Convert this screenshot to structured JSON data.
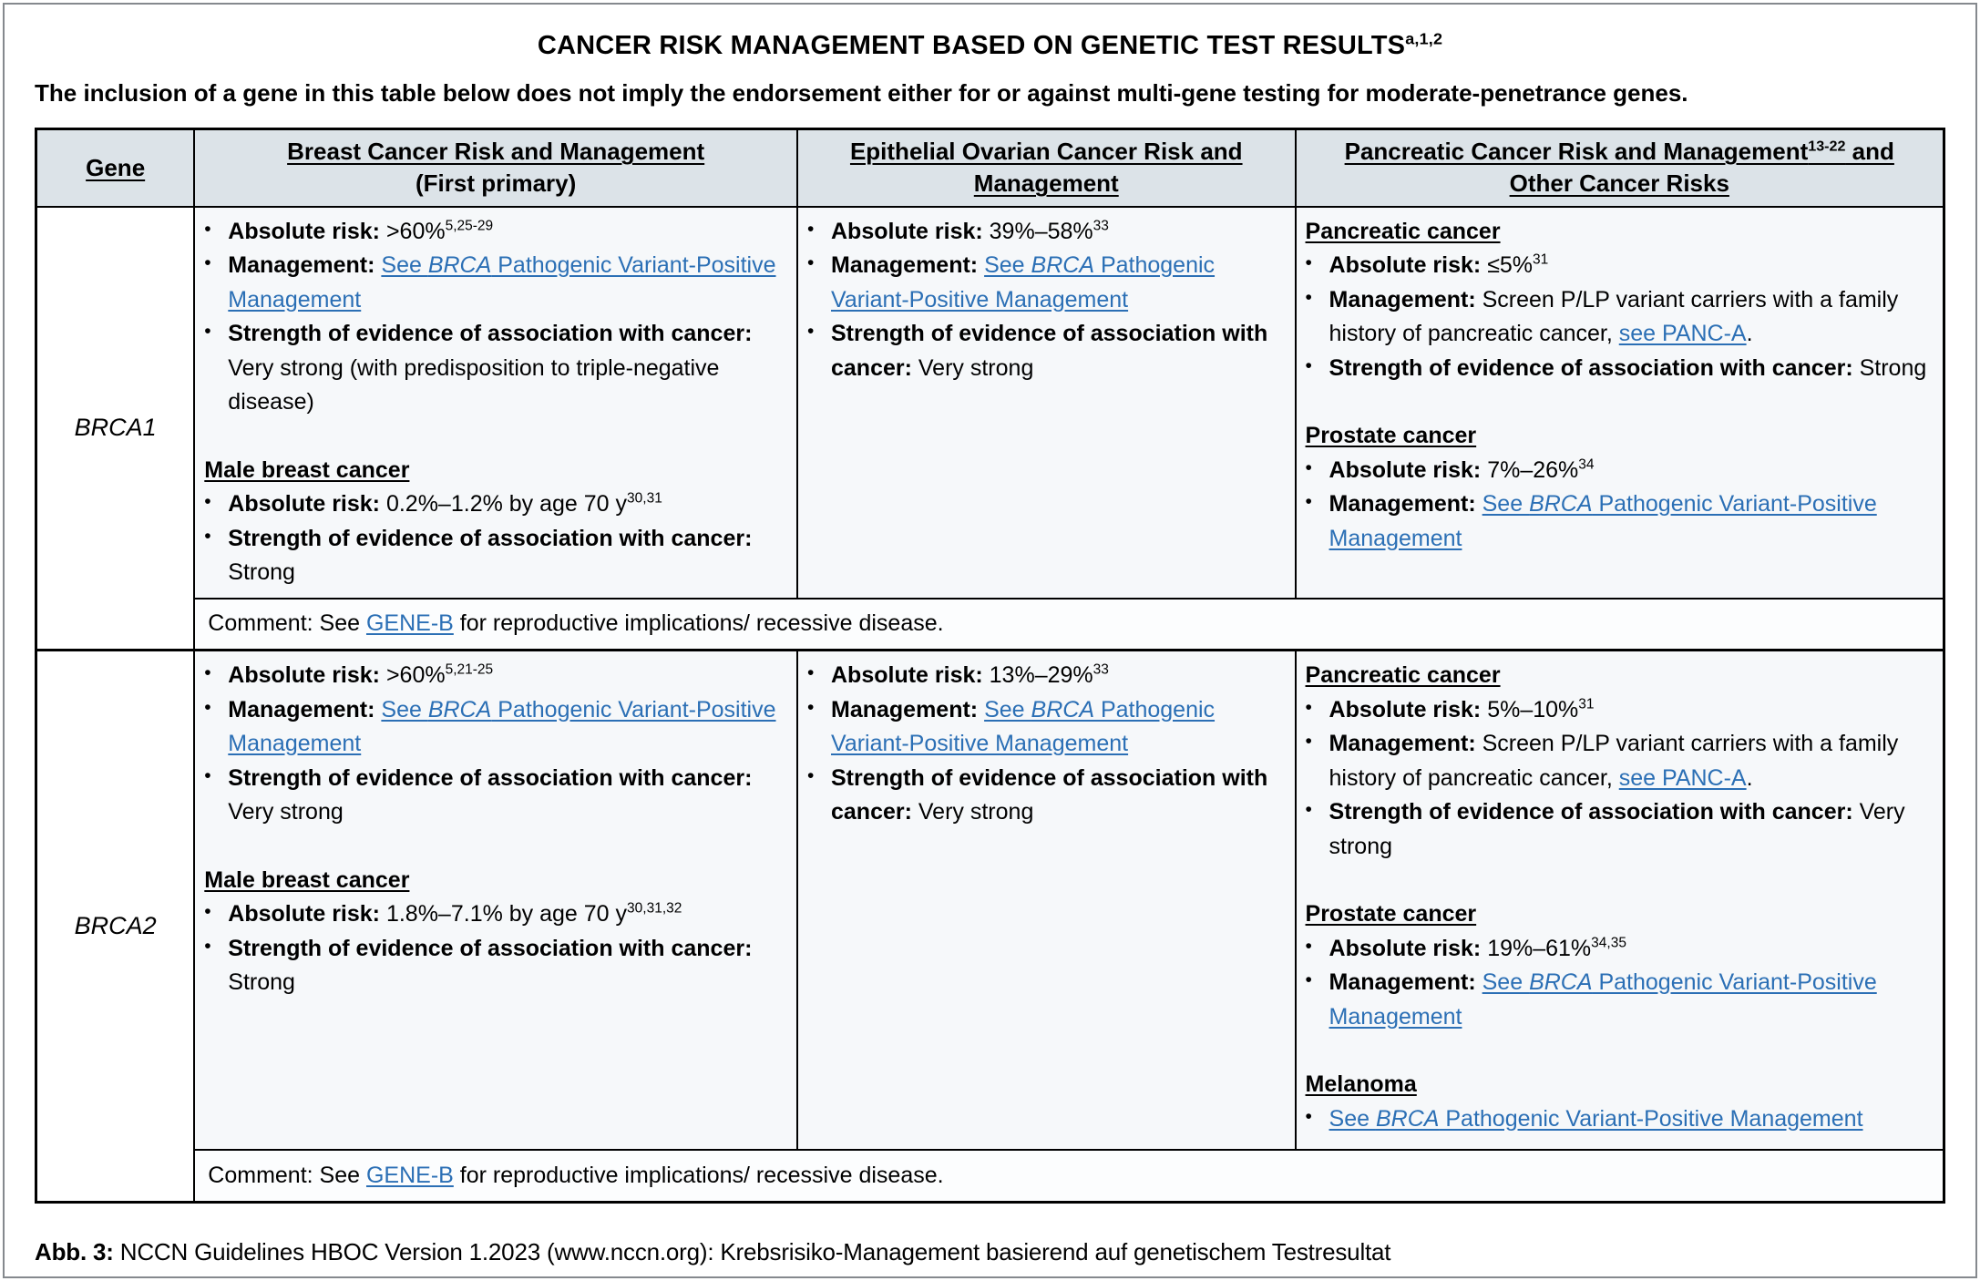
{
  "page": {
    "title": "CANCER RISK MANAGEMENT BASED ON GENETIC TEST RESULTS",
    "title_superscript": "a,1,2",
    "subtitle": "The inclusion of a gene in this table below does not imply the endorsement either for or against multi-gene testing for moderate-penetrance genes.",
    "caption_label": "Abb. 3:",
    "caption_text": "NCCN Guidelines HBOC Version 1.2023 (www.nccn.org): Krebsrisiko-Management basierend auf genetischem Testresultat"
  },
  "glyphs": {
    "bullet": "•"
  },
  "colors": {
    "link_blue": "#2b6fb5",
    "header_bg": "#dce3e8",
    "cell_bg": "#f6f8fa",
    "border": "#000000",
    "frame_gray": "#85898e"
  },
  "table": {
    "header": [
      {
        "id": "gene",
        "lines": [
          {
            "u": 1,
            "segments": [
              {
                "t": "Gene",
                "b": 1
              }
            ]
          }
        ]
      },
      {
        "id": "breast",
        "lines": [
          {
            "u": 1,
            "segments": [
              {
                "t": "Breast Cancer Risk and Management",
                "b": 1
              }
            ]
          },
          {
            "u": 0,
            "segments": [
              {
                "t": "(First primary)",
                "b": 1
              }
            ]
          }
        ]
      },
      {
        "id": "ovarian",
        "lines": [
          {
            "u": 1,
            "segments": [
              {
                "t": "Epithelial Ovarian Cancer Risk and",
                "b": 1
              }
            ]
          },
          {
            "u": 1,
            "segments": [
              {
                "t": "Management",
                "b": 1
              }
            ]
          }
        ]
      },
      {
        "id": "pancreatic",
        "lines": [
          {
            "u": 1,
            "segments": [
              {
                "t": "Pancreatic Cancer Risk and Management",
                "b": 1
              },
              {
                "t": "13-22",
                "b": 1,
                "sup": 1
              },
              {
                "t": " and",
                "b": 1
              }
            ]
          },
          {
            "u": 1,
            "segments": [
              {
                "t": "Other Cancer Risks",
                "b": 1
              }
            ]
          }
        ]
      }
    ],
    "rows": [
      {
        "gene": "BRCA1",
        "cells": {
          "breast": {
            "blocks": [
              {
                "type": "bullet",
                "segments": [
                  {
                    "t": "Absolute risk: ",
                    "b": 1
                  },
                  {
                    "t": ">60%"
                  },
                  {
                    "t": "5,25-29",
                    "sup": 1
                  }
                ]
              },
              {
                "type": "bullet",
                "segments": [
                  {
                    "t": "Management: ",
                    "b": 1
                  },
                  {
                    "t": "See ",
                    "link": 1
                  },
                  {
                    "t": "BRCA",
                    "link": 1,
                    "i": 1
                  },
                  {
                    "t": " Pathogenic Variant-Positive Management",
                    "link": 1
                  }
                ]
              },
              {
                "type": "bullet",
                "segments": [
                  {
                    "t": "Strength of evidence of association with cancer: ",
                    "b": 1
                  },
                  {
                    "t": "Very strong (with predisposition to triple-negative disease)"
                  }
                ]
              },
              {
                "type": "spacer"
              },
              {
                "type": "heading",
                "segments": [
                  {
                    "t": "Male breast cancer",
                    "b": 1
                  }
                ]
              },
              {
                "type": "bullet",
                "segments": [
                  {
                    "t": "Absolute risk: ",
                    "b": 1
                  },
                  {
                    "t": "0.2%–1.2% by age 70 y"
                  },
                  {
                    "t": "30,31",
                    "sup": 1
                  }
                ]
              },
              {
                "type": "bullet",
                "segments": [
                  {
                    "t": "Strength of evidence of association with cancer: ",
                    "b": 1
                  },
                  {
                    "t": "Strong"
                  }
                ]
              }
            ]
          },
          "ovarian": {
            "blocks": [
              {
                "type": "bullet",
                "segments": [
                  {
                    "t": "Absolute risk: ",
                    "b": 1
                  },
                  {
                    "t": "39%–58%"
                  },
                  {
                    "t": "33",
                    "sup": 1
                  }
                ]
              },
              {
                "type": "bullet",
                "segments": [
                  {
                    "t": "Management: ",
                    "b": 1
                  },
                  {
                    "t": "See ",
                    "link": 1
                  },
                  {
                    "t": "BRCA",
                    "link": 1,
                    "i": 1
                  },
                  {
                    "t": " Pathogenic Variant-Positive Management",
                    "link": 1
                  }
                ]
              },
              {
                "type": "bullet",
                "segments": [
                  {
                    "t": "Strength of evidence of association with cancer: ",
                    "b": 1
                  },
                  {
                    "t": "Very strong"
                  }
                ]
              }
            ]
          },
          "pancreatic": {
            "blocks": [
              {
                "type": "heading",
                "segments": [
                  {
                    "t": "Pancreatic cancer",
                    "b": 1
                  }
                ]
              },
              {
                "type": "bullet",
                "segments": [
                  {
                    "t": "Absolute risk: ",
                    "b": 1
                  },
                  {
                    "t": "≤5%"
                  },
                  {
                    "t": "31",
                    "sup": 1
                  }
                ]
              },
              {
                "type": "bullet",
                "segments": [
                  {
                    "t": "Management: ",
                    "b": 1
                  },
                  {
                    "t": "Screen P/LP variant carriers with a family history of pancreatic cancer, "
                  },
                  {
                    "t": "see PANC-A",
                    "link": 1
                  },
                  {
                    "t": "."
                  }
                ]
              },
              {
                "type": "bullet",
                "segments": [
                  {
                    "t": "Strength of evidence of association with cancer: ",
                    "b": 1
                  },
                  {
                    "t": "Strong"
                  }
                ]
              },
              {
                "type": "spacer"
              },
              {
                "type": "heading",
                "segments": [
                  {
                    "t": "Prostate cancer",
                    "b": 1
                  }
                ]
              },
              {
                "type": "bullet",
                "segments": [
                  {
                    "t": "Absolute risk: ",
                    "b": 1
                  },
                  {
                    "t": "7%–26%"
                  },
                  {
                    "t": "34",
                    "sup": 1
                  }
                ]
              },
              {
                "type": "bullet",
                "segments": [
                  {
                    "t": "Management: ",
                    "b": 1
                  },
                  {
                    "t": "See ",
                    "link": 1
                  },
                  {
                    "t": "BRCA",
                    "link": 1,
                    "i": 1
                  },
                  {
                    "t": " Pathogenic Variant-Positive Management",
                    "link": 1
                  }
                ]
              }
            ]
          }
        },
        "comment": {
          "blocks": [
            {
              "type": "plain",
              "segments": [
                {
                  "t": "Comment: See "
                },
                {
                  "t": "GENE-B",
                  "link": 1
                },
                {
                  "t": " for reproductive implications/ recessive disease."
                }
              ]
            }
          ]
        }
      },
      {
        "gene": "BRCA2",
        "cells": {
          "breast": {
            "blocks": [
              {
                "type": "bullet",
                "segments": [
                  {
                    "t": "Absolute risk: ",
                    "b": 1
                  },
                  {
                    "t": ">60%"
                  },
                  {
                    "t": "5,21-25",
                    "sup": 1
                  }
                ]
              },
              {
                "type": "bullet",
                "segments": [
                  {
                    "t": "Management: ",
                    "b": 1
                  },
                  {
                    "t": "See ",
                    "link": 1
                  },
                  {
                    "t": "BRCA",
                    "link": 1,
                    "i": 1
                  },
                  {
                    "t": " Pathogenic Variant-Positive Management",
                    "link": 1
                  }
                ]
              },
              {
                "type": "bullet",
                "segments": [
                  {
                    "t": "Strength of evidence of association with cancer: ",
                    "b": 1
                  },
                  {
                    "t": "Very strong"
                  }
                ]
              },
              {
                "type": "spacer"
              },
              {
                "type": "heading",
                "segments": [
                  {
                    "t": "Male breast cancer",
                    "b": 1
                  }
                ]
              },
              {
                "type": "bullet",
                "segments": [
                  {
                    "t": "Absolute risk: ",
                    "b": 1
                  },
                  {
                    "t": "1.8%–7.1% by age 70 y"
                  },
                  {
                    "t": "30,31,32",
                    "sup": 1
                  }
                ]
              },
              {
                "type": "bullet",
                "segments": [
                  {
                    "t": "Strength of evidence of association with cancer: ",
                    "b": 1
                  },
                  {
                    "t": "Strong"
                  }
                ]
              }
            ]
          },
          "ovarian": {
            "blocks": [
              {
                "type": "bullet",
                "segments": [
                  {
                    "t": "Absolute risk: ",
                    "b": 1
                  },
                  {
                    "t": "13%–29%"
                  },
                  {
                    "t": "33",
                    "sup": 1
                  }
                ]
              },
              {
                "type": "bullet",
                "segments": [
                  {
                    "t": "Management: ",
                    "b": 1
                  },
                  {
                    "t": "See ",
                    "link": 1
                  },
                  {
                    "t": "BRCA",
                    "link": 1,
                    "i": 1
                  },
                  {
                    "t": " Pathogenic Variant-Positive Management",
                    "link": 1
                  }
                ]
              },
              {
                "type": "bullet",
                "segments": [
                  {
                    "t": "Strength of evidence of association with cancer: ",
                    "b": 1
                  },
                  {
                    "t": "Very strong"
                  }
                ]
              }
            ]
          },
          "pancreatic": {
            "blocks": [
              {
                "type": "heading",
                "segments": [
                  {
                    "t": "Pancreatic cancer",
                    "b": 1
                  }
                ]
              },
              {
                "type": "bullet",
                "segments": [
                  {
                    "t": "Absolute risk: ",
                    "b": 1
                  },
                  {
                    "t": "5%–10%"
                  },
                  {
                    "t": "31",
                    "sup": 1
                  }
                ]
              },
              {
                "type": "bullet",
                "segments": [
                  {
                    "t": "Management: ",
                    "b": 1
                  },
                  {
                    "t": "Screen P/LP variant carriers with a family history of pancreatic cancer, "
                  },
                  {
                    "t": "see PANC-A",
                    "link": 1
                  },
                  {
                    "t": "."
                  }
                ]
              },
              {
                "type": "bullet",
                "segments": [
                  {
                    "t": "Strength of evidence of association with cancer: ",
                    "b": 1
                  },
                  {
                    "t": "Very strong"
                  }
                ]
              },
              {
                "type": "spacer"
              },
              {
                "type": "heading",
                "segments": [
                  {
                    "t": "Prostate cancer",
                    "b": 1
                  }
                ]
              },
              {
                "type": "bullet",
                "segments": [
                  {
                    "t": "Absolute risk: ",
                    "b": 1
                  },
                  {
                    "t": "19%–61%"
                  },
                  {
                    "t": "34,35",
                    "sup": 1
                  }
                ]
              },
              {
                "type": "bullet",
                "segments": [
                  {
                    "t": "Management: ",
                    "b": 1
                  },
                  {
                    "t": "See ",
                    "link": 1
                  },
                  {
                    "t": "BRCA",
                    "link": 1,
                    "i": 1
                  },
                  {
                    "t": " Pathogenic Variant-Positive Management",
                    "link": 1
                  }
                ]
              },
              {
                "type": "spacer"
              },
              {
                "type": "heading",
                "segments": [
                  {
                    "t": "Melanoma",
                    "b": 1
                  }
                ]
              },
              {
                "type": "bullet",
                "segments": [
                  {
                    "t": "See ",
                    "link": 1
                  },
                  {
                    "t": "BRCA",
                    "link": 1,
                    "i": 1
                  },
                  {
                    "t": " Pathogenic Variant-Positive Management",
                    "link": 1
                  }
                ]
              }
            ]
          }
        },
        "comment": {
          "blocks": [
            {
              "type": "plain",
              "segments": [
                {
                  "t": "Comment: See "
                },
                {
                  "t": "GENE-B",
                  "link": 1
                },
                {
                  "t": " for reproductive implications/ recessive disease."
                }
              ]
            }
          ]
        }
      }
    ]
  }
}
